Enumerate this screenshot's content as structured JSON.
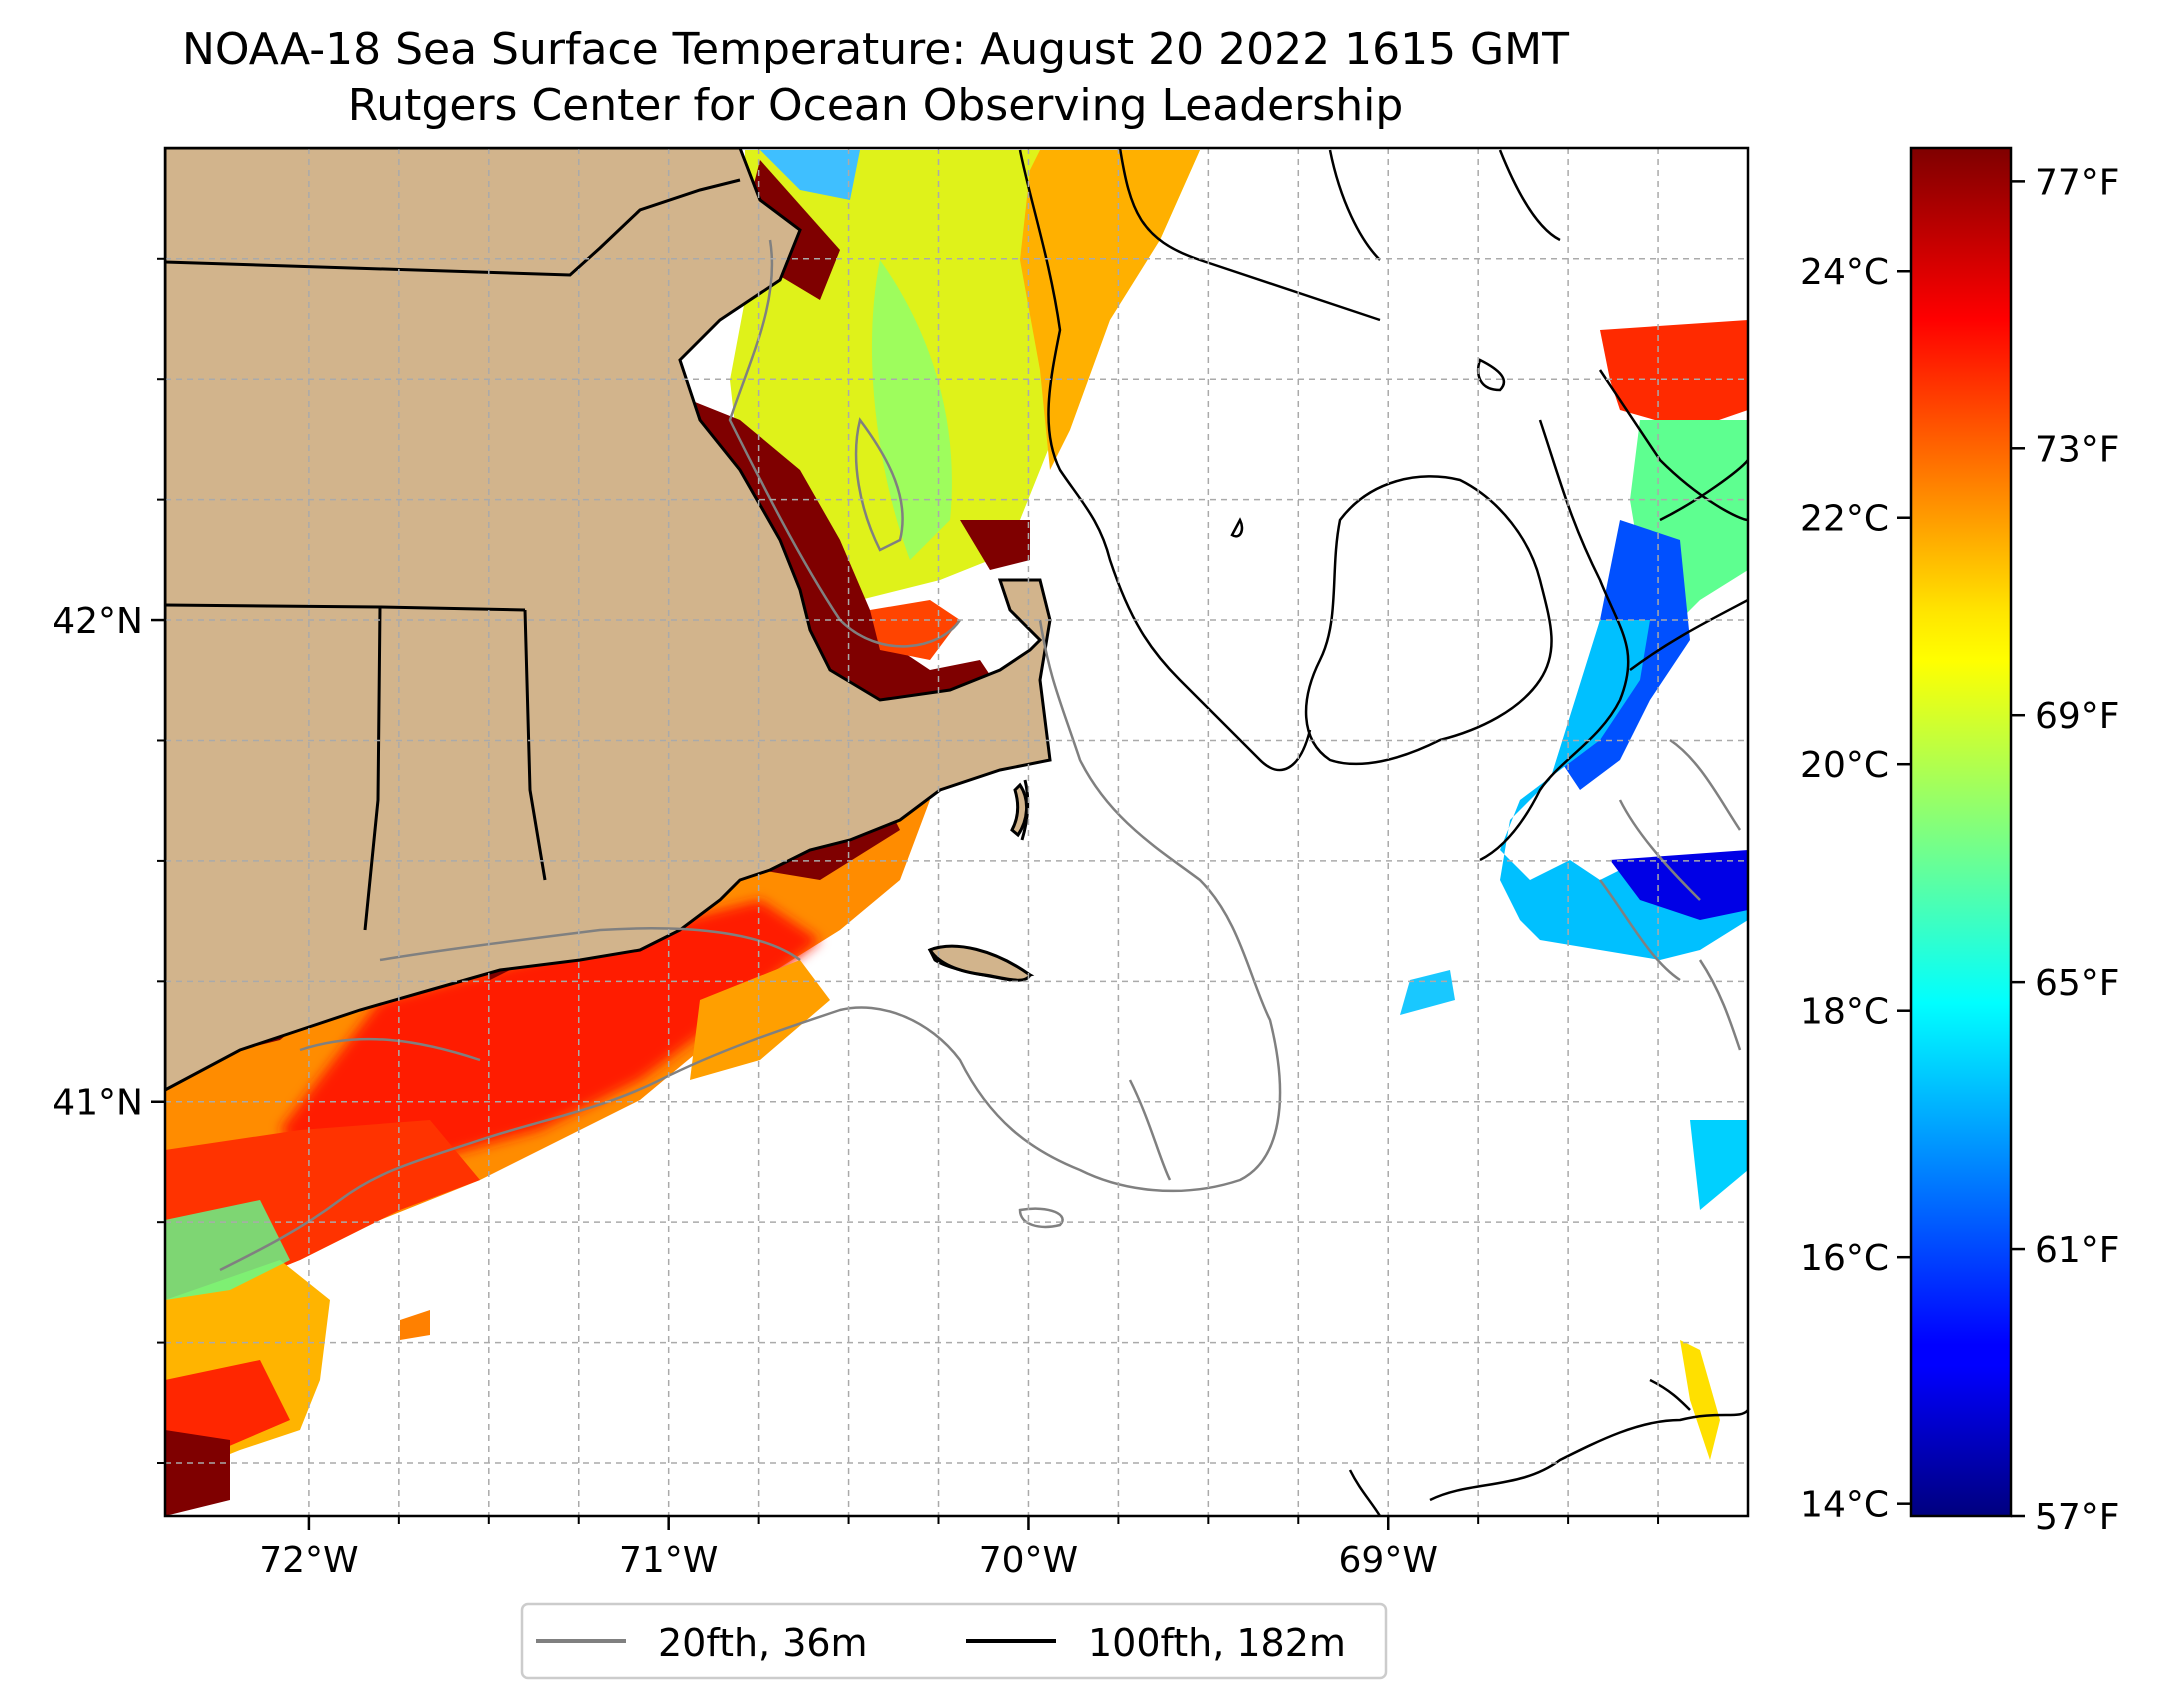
{
  "title": "NOAA-18 Sea Surface Temperature: August 20 2022 1615 GMT",
  "subtitle": "Rutgers Center for Ocean Observing Leadership",
  "map": {
    "lon_range": [
      -72.4,
      -68.0
    ],
    "lat_range": [
      40.14,
      42.98
    ],
    "lon_ticks": [
      {
        "value": -72,
        "label": "72°W"
      },
      {
        "value": -71,
        "label": "71°W"
      },
      {
        "value": -70,
        "label": "70°W"
      },
      {
        "value": -69,
        "label": "69°W"
      }
    ],
    "lat_ticks": [
      {
        "value": 42,
        "label": "42°N"
      },
      {
        "value": 41,
        "label": "41°N"
      }
    ],
    "minor_lon": [
      -71.75,
      -71.5,
      -71.25,
      -70.75,
      -70.5,
      -70.25,
      -69.75,
      -69.5,
      -69.25,
      -68.75,
      -68.5,
      -68.25
    ],
    "minor_lat": [
      40.25,
      40.5,
      40.75,
      41.25,
      41.5,
      41.75,
      42.25,
      42.5,
      42.75
    ],
    "gridlines": true,
    "land_color": "#d2b48c",
    "colormap": "jet"
  },
  "colorbar": {
    "celsius_range": [
      13.9,
      25.0
    ],
    "celsius_ticks": [
      {
        "value": 14,
        "label": "14°C"
      },
      {
        "value": 16,
        "label": "16°C"
      },
      {
        "value": 18,
        "label": "18°C"
      },
      {
        "value": 20,
        "label": "20°C"
      },
      {
        "value": 22,
        "label": "22°C"
      },
      {
        "value": 24,
        "label": "24°C"
      }
    ],
    "fahrenheit_range": [
      57,
      77.5
    ],
    "fahrenheit_ticks": [
      {
        "value": 57,
        "label": "57°F"
      },
      {
        "value": 61,
        "label": "61°F"
      },
      {
        "value": 65,
        "label": "65°F"
      },
      {
        "value": 69,
        "label": "69°F"
      },
      {
        "value": 73,
        "label": "73°F"
      },
      {
        "value": 77,
        "label": "77°F"
      }
    ]
  },
  "legend": {
    "placement": "bottom-center",
    "items": [
      {
        "label": "20fth, 36m",
        "color": "#808080"
      },
      {
        "label": "100fth, 182m",
        "color": "#000000"
      }
    ]
  }
}
